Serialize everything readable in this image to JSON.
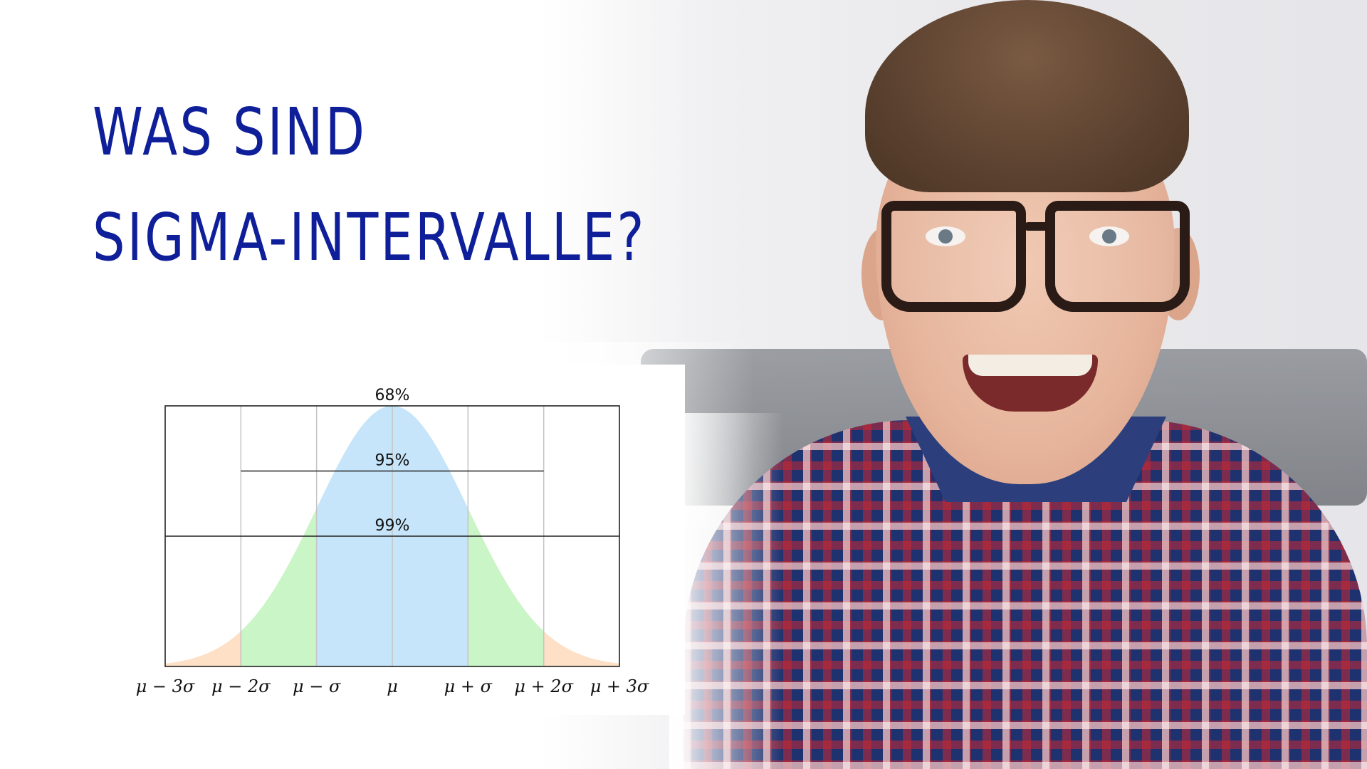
{
  "title": {
    "line1": "Was sind",
    "line2": "Sigma-Intervalle?"
  },
  "chart_data": {
    "type": "area",
    "title": "",
    "xlabel": "",
    "ylabel": "",
    "x_ticks": [
      "μ − 3σ",
      "μ − 2σ",
      "μ − σ",
      "μ",
      "μ + σ",
      "μ + 2σ",
      "μ + 3σ"
    ],
    "x_range_sigma": [
      -3,
      3
    ],
    "bands": [
      {
        "label": "68%",
        "from_sigma": -1,
        "to_sigma": 1,
        "color": "#c6e5fb"
      },
      {
        "label": "95%",
        "from_sigma": -2,
        "to_sigma": 2,
        "color": "#c9f5c7"
      },
      {
        "label": "99%",
        "from_sigma": -3,
        "to_sigma": 3,
        "color": "#fde0c5"
      }
    ],
    "grid": true,
    "legend": "none"
  },
  "colors": {
    "title": "#0f1f9a",
    "band_1sigma": "#c6e5fb",
    "band_2sigma": "#c9f5c7",
    "band_3sigma": "#fde0c5"
  }
}
